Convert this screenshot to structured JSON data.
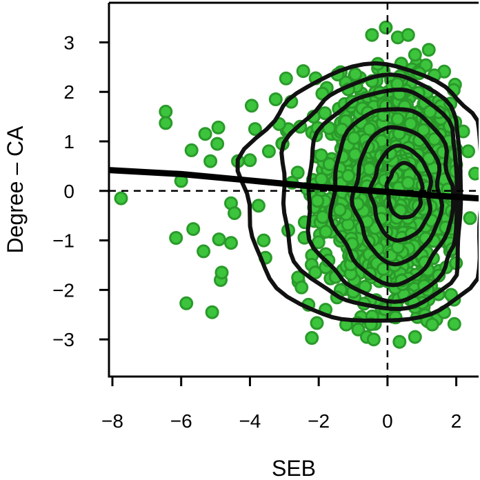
{
  "chart_data": {
    "type": "scatter",
    "title": "",
    "xlabel": "SEB",
    "ylabel": "Degree – CA",
    "xlim": [
      -8.1,
      2.65
    ],
    "ylim": [
      -3.75,
      3.8
    ],
    "x_ticks": [
      -8,
      -6,
      -4,
      -2,
      0,
      2
    ],
    "x_tick_labels": [
      "−8",
      "−6",
      "−4",
      "−2",
      "0",
      "2"
    ],
    "y_ticks": [
      -3,
      -2,
      -1,
      0,
      1,
      2,
      3
    ],
    "y_tick_labels": [
      "−3",
      "−2",
      "−1",
      "0",
      "1",
      "2",
      "3"
    ],
    "reference_lines": {
      "x": 0,
      "y": 0,
      "style": "dashed"
    },
    "grid": false,
    "legend": "none",
    "colors": {
      "point_fill": "#3cc43c",
      "point_edge": "#2a9a2a",
      "contour": "#111111",
      "fit_line": "#000000"
    },
    "outlier_points": [
      [
        -7.75,
        -0.15
      ],
      [
        -6.45,
        1.6
      ],
      [
        -6.45,
        1.37
      ],
      [
        -6.15,
        -0.95
      ],
      [
        -6.0,
        0.2
      ],
      [
        -5.85,
        -2.27
      ],
      [
        -5.7,
        0.82
      ],
      [
        -5.65,
        -0.77
      ],
      [
        -5.35,
        -1.22
      ],
      [
        -5.3,
        1.15
      ],
      [
        -5.15,
        0.6
      ],
      [
        -5.1,
        -2.45
      ],
      [
        -4.95,
        0.95
      ],
      [
        -4.92,
        1.28
      ],
      [
        -4.9,
        -0.98
      ],
      [
        -4.85,
        -1.8
      ],
      [
        -4.82,
        -1.65
      ],
      [
        -4.55,
        -1.05
      ],
      [
        -4.55,
        -0.25
      ],
      [
        -4.45,
        -0.45
      ],
      [
        -4.35,
        0.6
      ],
      [
        -4.0,
        0.62
      ],
      [
        -3.95,
        1.72
      ],
      [
        -3.85,
        1.25
      ],
      [
        -3.75,
        -0.3
      ],
      [
        -3.6,
        -1.0
      ],
      [
        -3.55,
        -1.35
      ],
      [
        -3.45,
        0.8
      ],
      [
        -3.25,
        1.85
      ],
      [
        -3.15,
        1.35
      ],
      [
        -3.05,
        0.95
      ],
      [
        -2.95,
        2.27
      ],
      [
        -2.8,
        1.8
      ],
      [
        -2.6,
        -1.75
      ],
      [
        -2.5,
        -1.95
      ],
      [
        -2.45,
        2.42
      ],
      [
        -2.3,
        -2.3
      ],
      [
        -2.2,
        -2.97
      ],
      [
        -2.15,
        1.5
      ],
      [
        -1.8,
        -2.4
      ],
      [
        -1.45,
        2.35
      ],
      [
        -1.2,
        -2.7
      ],
      [
        -0.85,
        -2.8
      ],
      [
        -0.6,
        -2.95
      ],
      [
        -0.45,
        3.15
      ],
      [
        -0.4,
        -3.0
      ],
      [
        -0.05,
        3.3
      ],
      [
        0.3,
        3.1
      ],
      [
        0.35,
        -3.05
      ],
      [
        0.6,
        3.15
      ],
      [
        0.8,
        2.75
      ],
      [
        0.8,
        -2.95
      ],
      [
        1.2,
        2.85
      ],
      [
        1.3,
        -2.7
      ],
      [
        1.65,
        -2.45
      ],
      [
        1.85,
        -2.1
      ],
      [
        2.2,
        1.2
      ],
      [
        2.35,
        0.8
      ],
      [
        2.4,
        -0.55
      ],
      [
        2.55,
        0.35
      ]
    ],
    "cloud": {
      "center": [
        0.1,
        0.0
      ],
      "x_sd": 0.95,
      "y_sd": 1.05,
      "count": 1400
    },
    "density_contours": [
      {
        "level": 1,
        "cx": -0.35,
        "cy": -0.05,
        "rx": 3.85,
        "ry_top": 2.55,
        "ry_bottom": 2.65,
        "right_edge": 2.6
      },
      {
        "level": 2,
        "cx": -0.15,
        "cy": -0.05,
        "rx": 2.95,
        "ry_top": 2.35,
        "ry_bottom": 2.35,
        "right_edge": 2.0
      },
      {
        "level": 3,
        "cx": 0.0,
        "cy": -0.05,
        "rx": 2.35,
        "ry_top": 2.1,
        "ry_bottom": 2.15,
        "right_edge": 1.95
      },
      {
        "level": 4,
        "cx": 0.15,
        "cy": -0.05,
        "rx": 1.75,
        "ry_top": 1.75,
        "ry_bottom": 1.8,
        "right_edge": 1.9
      },
      {
        "level": 5,
        "cx": 0.3,
        "cy": -0.05,
        "rx": 1.25,
        "ry_top": 1.35,
        "ry_bottom": 1.4,
        "right_edge": 1.75
      },
      {
        "level": 6,
        "cx": 0.4,
        "cy": -0.05,
        "rx": 0.85,
        "ry_top": 0.95,
        "ry_bottom": 0.95,
        "right_edge": 1.5
      },
      {
        "level": 7,
        "cx": 0.5,
        "cy": 0.0,
        "rx": 0.5,
        "ry_top": 0.55,
        "ry_bottom": 0.55,
        "right_edge": 1.05
      }
    ],
    "fit_line": {
      "type": "smooth",
      "points": [
        [
          -8.1,
          0.42
        ],
        [
          -6,
          0.34
        ],
        [
          -4,
          0.21
        ],
        [
          -2,
          0.08
        ],
        [
          0,
          -0.02
        ],
        [
          1.5,
          -0.1
        ],
        [
          2.65,
          -0.15
        ]
      ]
    }
  }
}
